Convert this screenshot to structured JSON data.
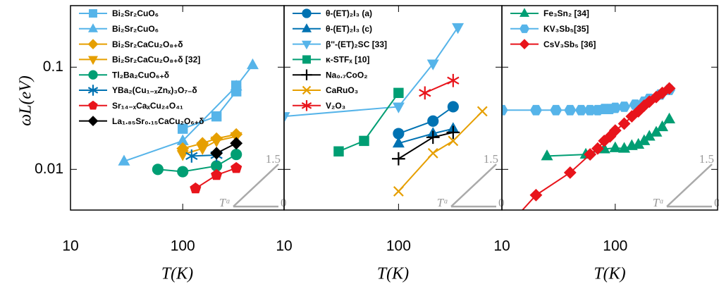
{
  "chart_data": [
    {
      "type": "line",
      "log_x": true,
      "log_y": true,
      "ylabel": "ωL(eV)",
      "xlabel": "T(K)",
      "xlim": [
        10,
        800
      ],
      "ylim": [
        0.004,
        0.4
      ],
      "xticks": [
        10,
        100
      ],
      "yticks": [
        0.01,
        0.1
      ],
      "guide": {
        "steep": "1.5",
        "flat": "0",
        "label": "Tᵅ"
      },
      "series": [
        {
          "name": "Bi₂Sr₂CuO₆",
          "color": "#56B4E9",
          "marker": "square",
          "x": [
            100,
            200,
            300,
            300
          ],
          "values": [
            0.025,
            0.033,
            0.058,
            0.066
          ]
        },
        {
          "name": "Bi₂Sr₂CuO₆",
          "color": "#56B4E9",
          "marker": "triangle",
          "x": [
            30,
            100,
            300,
            420
          ],
          "values": [
            0.012,
            0.019,
            0.065,
            0.105
          ]
        },
        {
          "name": "Bi₂Sr₂CaCu₂O₈₊δ",
          "color": "#E69F00",
          "marker": "diamond",
          "x": [
            100,
            150,
            200,
            300
          ],
          "values": [
            0.016,
            0.018,
            0.02,
            0.022
          ]
        },
        {
          "name": "Bi₂Sr₂CaCu₂O₈₊δ [32]",
          "color": "#E69F00",
          "marker": "triangle-down",
          "x": [
            100,
            150,
            200,
            300
          ],
          "values": [
            0.014,
            0.016,
            0.019,
            0.021
          ]
        },
        {
          "name": "Tl₂Ba₂CuO₆₊δ",
          "color": "#009E73",
          "marker": "circle",
          "x": [
            60,
            100,
            200,
            300
          ],
          "values": [
            0.01,
            0.0095,
            0.0108,
            0.014
          ]
        },
        {
          "name": "YBa₂(Cu₁₋ₓZnₓ)₃O₇₋δ",
          "color": "#0072B2",
          "marker": "asterisk",
          "x": [
            120,
            200
          ],
          "values": [
            0.0135,
            0.0138
          ]
        },
        {
          "name": "Sr₁₄₋ₓCaₓCu₂₄O₄₁",
          "color": "#E8141B",
          "marker": "pentagon",
          "x": [
            130,
            200,
            300
          ],
          "values": [
            0.0065,
            0.0088,
            0.0103
          ]
        },
        {
          "name": "La₁.₈₅Sr₀.₁₅CaCu₂O₆₊δ",
          "color": "#000000",
          "marker": "diamond",
          "x": [
            200,
            300
          ],
          "values": [
            0.0144,
            0.018
          ]
        }
      ]
    },
    {
      "type": "line",
      "log_x": true,
      "log_y": true,
      "xlabel": "T(K)",
      "xlim": [
        10,
        800
      ],
      "ylim": [
        0.004,
        0.4
      ],
      "xticks": [
        10,
        100
      ],
      "yticks": [
        0.01,
        0.1
      ],
      "guide": {
        "steep": "1.5",
        "flat": "0",
        "label": "Tᵅ"
      },
      "series": [
        {
          "name": "θ-(ET)₂I₃ (a)",
          "color": "#0072B2",
          "marker": "circle",
          "x": [
            100,
            200,
            300
          ],
          "values": [
            0.0224,
            0.0297,
            0.041
          ]
        },
        {
          "name": "θ-(ET)₂I₃ (c)",
          "color": "#0072B2",
          "marker": "triangle",
          "x": [
            100,
            200,
            300
          ],
          "values": [
            0.018,
            0.0224,
            0.025
          ]
        },
        {
          "name": "β''-(ET)₂SC [33]",
          "color": "#56B4E9",
          "marker": "triangle-down",
          "x": [
            10,
            100,
            200,
            330
          ],
          "values": [
            0.033,
            0.041,
            0.108,
            0.245
          ]
        },
        {
          "name": "κ-STFₓ [10]",
          "color": "#009E73",
          "marker": "square",
          "x": [
            30,
            50,
            100
          ],
          "values": [
            0.015,
            0.019,
            0.056
          ]
        },
        {
          "name": "Na₀.₇CoO₂",
          "color": "#000000",
          "marker": "plus",
          "x": [
            100,
            200,
            300
          ],
          "values": [
            0.0127,
            0.0206,
            0.023
          ]
        },
        {
          "name": "CaRuO₃",
          "color": "#E69F00",
          "marker": "x",
          "x": [
            100,
            200,
            300,
            540
          ],
          "values": [
            0.0061,
            0.0144,
            0.019,
            0.037
          ]
        },
        {
          "name": "V₂O₃",
          "color": "#E8141B",
          "marker": "asterisk",
          "x": [
            170,
            300
          ],
          "values": [
            0.056,
            0.074
          ]
        }
      ]
    },
    {
      "type": "line",
      "log_x": true,
      "log_y": true,
      "xlabel": "T(K)",
      "xlim": [
        10,
        800
      ],
      "ylim": [
        0.004,
        0.4
      ],
      "xticks": [
        10,
        100
      ],
      "yticks": [
        0.01,
        0.1
      ],
      "guide": {
        "steep": "1.5",
        "flat": "0",
        "label": "Tᵅ"
      },
      "series": [
        {
          "name": "Fe₃Sn₂ [34]",
          "color": "#009E73",
          "marker": "triangle",
          "x": [
            25,
            55,
            80,
            100,
            120,
            140,
            160,
            180,
            200,
            230,
            260,
            300
          ],
          "values": [
            0.0135,
            0.014,
            0.0158,
            0.0162,
            0.016,
            0.017,
            0.0175,
            0.019,
            0.021,
            0.023,
            0.026,
            0.031
          ]
        },
        {
          "name": "KV₃Sb₅[35]",
          "color": "#56B4E9",
          "marker": "hexagon",
          "x": [
            10,
            20,
            30,
            40,
            50,
            60,
            70,
            80,
            90,
            100,
            120,
            150,
            180,
            200,
            250,
            300
          ],
          "values": [
            0.038,
            0.038,
            0.038,
            0.038,
            0.038,
            0.038,
            0.038,
            0.039,
            0.039,
            0.04,
            0.041,
            0.043,
            0.046,
            0.049,
            0.054,
            0.06
          ]
        },
        {
          "name": "CsV₃Sb₅ [36]",
          "color": "#E8141B",
          "marker": "diamond",
          "x": [
            12,
            20,
            40,
            60,
            70,
            80,
            90,
            100,
            120,
            140,
            160,
            180,
            200,
            230,
            260,
            300
          ],
          "values": [
            0.003,
            0.0056,
            0.0093,
            0.014,
            0.016,
            0.019,
            0.021,
            0.024,
            0.028,
            0.033,
            0.037,
            0.042,
            0.046,
            0.051,
            0.056,
            0.062
          ]
        }
      ]
    }
  ]
}
